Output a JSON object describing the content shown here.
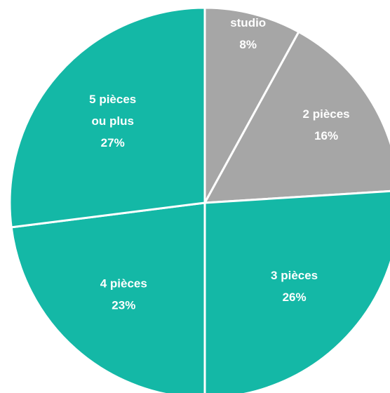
{
  "chart_data": {
    "type": "pie",
    "slices": [
      {
        "label_lines": [
          "studio"
        ],
        "value_text": "8%",
        "value": 8,
        "color": "#a6a6a6"
      },
      {
        "label_lines": [
          "2 pièces"
        ],
        "value_text": "16%",
        "value": 16,
        "color": "#a6a6a6"
      },
      {
        "label_lines": [
          "3 pièces"
        ],
        "value_text": "26%",
        "value": 26,
        "color": "#14b8a6"
      },
      {
        "label_lines": [
          "4 pièces"
        ],
        "value_text": "23%",
        "value": 23,
        "color": "#14b8a6"
      },
      {
        "label_lines": [
          "5 pièces",
          "ou plus"
        ],
        "value_text": "27%",
        "value": 27,
        "color": "#14b8a6"
      }
    ],
    "start_angle_deg": 0,
    "direction": "clockwise",
    "separator_color": "#ffffff",
    "label_color": "#ffffff"
  }
}
